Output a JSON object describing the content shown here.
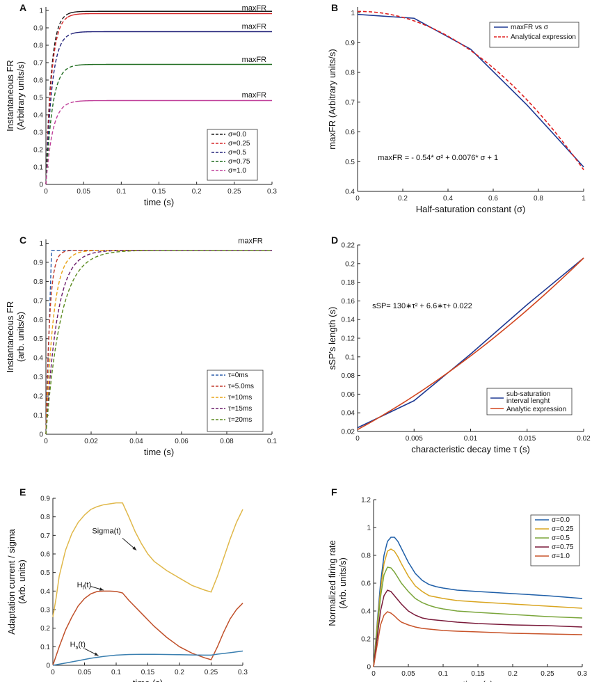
{
  "figure": {
    "panels": [
      "A",
      "B",
      "C",
      "D",
      "E",
      "F"
    ]
  },
  "chart_data": [
    {
      "panel": "A",
      "type": "line",
      "title": "",
      "xlabel": "time (s)",
      "ylabel": [
        "Instantaneous FR",
        "(Arbitrary units/s)"
      ],
      "xlim": [
        0,
        0.3
      ],
      "ylim": [
        0,
        1.02
      ],
      "xticks": [
        0,
        0.05,
        0.1,
        0.15,
        0.2,
        0.25,
        0.3
      ],
      "xtick_labels": [
        "0",
        "0.05",
        "0.1",
        "0.15",
        "0.2",
        "0.25",
        "0.3"
      ],
      "yticks": [
        0,
        0.1,
        0.2,
        0.3,
        0.4,
        0.5,
        0.6,
        0.7,
        0.8,
        0.9,
        1
      ],
      "ytick_labels": [
        "0",
        "0.1",
        "0.2",
        "0.3",
        "0.4",
        "0.5",
        "0.6",
        "0.7",
        "0.8",
        "0.9",
        "1"
      ],
      "legend_position": "bottom-right",
      "series": [
        {
          "name": "σ=0.0",
          "plateau": 0.995,
          "tau": 0.007,
          "color": "#1a1a1a",
          "dash_until": 0.03
        },
        {
          "name": "σ=0.25",
          "plateau": 0.982,
          "tau": 0.0075,
          "color": "#d62728",
          "dash_until": 0.03
        },
        {
          "name": "σ=0.5",
          "plateau": 0.878,
          "tau": 0.008,
          "color": "#23237a",
          "dash_until": 0.035
        },
        {
          "name": "σ=0.75",
          "plateau": 0.69,
          "tau": 0.0085,
          "color": "#1e6b1e",
          "dash_until": 0.04
        },
        {
          "name": "σ=1.0",
          "plateau": 0.482,
          "tau": 0.009,
          "color": "#c0409a",
          "dash_until": 0.04
        }
      ],
      "annotations": [
        {
          "text": "maxFR",
          "x": 0.26,
          "y": 1.0
        },
        {
          "text": "maxFR",
          "x": 0.26,
          "y": 0.895
        },
        {
          "text": "maxFR",
          "x": 0.26,
          "y": 0.705
        },
        {
          "text": "maxFR",
          "x": 0.26,
          "y": 0.5
        }
      ]
    },
    {
      "panel": "B",
      "type": "line",
      "title": "",
      "xlabel": "Half-saturation constant (σ)",
      "ylabel": [
        "maxFR (Arbitrary units/s)"
      ],
      "xlim": [
        0,
        1
      ],
      "ylim": [
        0.4,
        1.02
      ],
      "xticks": [
        0,
        0.2,
        0.4,
        0.6,
        0.8,
        1
      ],
      "xtick_labels": [
        "0",
        "0.2",
        "0.4",
        "0.6",
        "0.8",
        "1"
      ],
      "yticks": [
        0.4,
        0.5,
        0.6,
        0.7,
        0.8,
        0.9,
        1
      ],
      "ytick_labels": [
        "0.4",
        "0.5",
        "0.6",
        "0.7",
        "0.8",
        "0.9",
        "1"
      ],
      "legend_position": "top-right",
      "series": [
        {
          "name": "maxFR vs  σ",
          "x": [
            0,
            0.25,
            0.5,
            0.75,
            1.0
          ],
          "y": [
            0.995,
            0.982,
            0.878,
            0.69,
            0.482
          ],
          "color": "#1f3a93",
          "style": "solid"
        },
        {
          "name": "Analytical expression",
          "formula": "-0.54*s^2+0.0076*s+1",
          "color": "#e02020",
          "style": "dashed"
        }
      ],
      "equation": "maxFR = - 0.54*   σ² + 0.0076*   σ + 1"
    },
    {
      "panel": "C",
      "type": "line",
      "title": "",
      "xlabel": "time (s)",
      "ylabel": [
        "Instantaneous FR",
        "(arb. units/s)"
      ],
      "xlim": [
        0,
        0.1
      ],
      "ylim": [
        0,
        1.02
      ],
      "xticks": [
        0,
        0.02,
        0.04,
        0.06,
        0.08,
        0.1
      ],
      "xtick_labels": [
        "0",
        "0.02",
        "0.04",
        "0.06",
        "0.08",
        "0.1"
      ],
      "yticks": [
        0,
        0.1,
        0.2,
        0.3,
        0.4,
        0.5,
        0.6,
        0.7,
        0.8,
        0.9,
        1
      ],
      "ytick_labels": [
        "0",
        "0.1",
        "0.2",
        "0.3",
        "0.4",
        "0.5",
        "0.6",
        "0.7",
        "0.8",
        "0.9",
        "1"
      ],
      "legend_position": "bottom-right",
      "plateau": 0.963,
      "series": [
        {
          "name": "τ=0ms",
          "tau_ms": 0,
          "color": "#2a5caa"
        },
        {
          "name": "τ=5.0ms",
          "tau_ms": 5,
          "color": "#c0392b"
        },
        {
          "name": "τ=10ms",
          "tau_ms": 10,
          "color": "#e8a317"
        },
        {
          "name": "τ=15ms",
          "tau_ms": 15,
          "color": "#6a1b6a"
        },
        {
          "name": "τ=20ms",
          "tau_ms": 20,
          "color": "#5a8a1e"
        }
      ],
      "annotations": [
        {
          "text": "maxFR",
          "x": 0.085,
          "y": 0.985
        }
      ]
    },
    {
      "panel": "D",
      "type": "line",
      "title": "",
      "xlabel": "characteristic decay time τ (s)",
      "ylabel": [
        "sSP's length (s)"
      ],
      "xlim": [
        0,
        0.02
      ],
      "ylim": [
        0.02,
        0.22
      ],
      "xticks": [
        0,
        0.005,
        0.01,
        0.015,
        0.02
      ],
      "xtick_labels": [
        "0",
        "0.005",
        "0.01",
        "0.015",
        "0.02"
      ],
      "yticks": [
        0.02,
        0.04,
        0.06,
        0.08,
        0.1,
        0.12,
        0.14,
        0.16,
        0.18,
        0.2,
        0.22
      ],
      "ytick_labels": [
        "0.02",
        "0.04",
        "0.06",
        "0.08",
        "0.1",
        "0.12",
        "0.14",
        "0.16",
        "0.18",
        "0.2",
        "0.22"
      ],
      "legend_position": "bottom-right",
      "series": [
        {
          "name": "sub-saturation interval lenght",
          "legend_lines": [
            "sub-saturation",
            "interval lenght"
          ],
          "x": [
            0,
            0.005,
            0.01,
            0.015,
            0.02
          ],
          "y": [
            0.024,
            0.053,
            0.103,
            0.156,
            0.206
          ],
          "color": "#1f3a93"
        },
        {
          "name": "Analytic expression",
          "formula": "130*t^2+6.6*t+0.022",
          "color": "#d2451e"
        }
      ],
      "equation": "sSP= 130∗τ² + 6.6∗τ+ 0.022"
    },
    {
      "panel": "E",
      "type": "line",
      "title": "",
      "xlabel": "time (s)",
      "ylabel": [
        "Adaptation current / sigma",
        "(Arb. units)"
      ],
      "xlim": [
        0,
        0.3
      ],
      "ylim": [
        0,
        0.9
      ],
      "xticks": [
        0,
        0.05,
        0.1,
        0.15,
        0.2,
        0.25,
        0.3
      ],
      "xtick_labels": [
        "0",
        "0.05",
        "0.1",
        "0.15",
        "0.2",
        "0.25",
        "0.3"
      ],
      "yticks": [
        0,
        0.1,
        0.2,
        0.3,
        0.4,
        0.5,
        0.6,
        0.7,
        0.8,
        0.9
      ],
      "ytick_labels": [
        "0",
        "0.1",
        "0.2",
        "0.3",
        "0.4",
        "0.5",
        "0.6",
        "0.7",
        "0.8",
        "0.9"
      ],
      "series": [
        {
          "name": "Sigma(t)",
          "color": "#e0b84a",
          "x": [
            0,
            0.005,
            0.01,
            0.02,
            0.03,
            0.04,
            0.05,
            0.06,
            0.07,
            0.08,
            0.09,
            0.1,
            0.11,
            0.12,
            0.13,
            0.14,
            0.15,
            0.16,
            0.18,
            0.2,
            0.22,
            0.24,
            0.25,
            0.26,
            0.27,
            0.28,
            0.29,
            0.3
          ],
          "y": [
            0.26,
            0.36,
            0.48,
            0.62,
            0.71,
            0.77,
            0.81,
            0.84,
            0.855,
            0.865,
            0.87,
            0.875,
            0.875,
            0.8,
            0.72,
            0.655,
            0.6,
            0.56,
            0.51,
            0.47,
            0.43,
            0.405,
            0.395,
            0.48,
            0.58,
            0.68,
            0.77,
            0.84
          ]
        },
        {
          "name": "H_f(t)",
          "color": "#c0502a",
          "x": [
            0,
            0.01,
            0.02,
            0.03,
            0.04,
            0.05,
            0.06,
            0.07,
            0.08,
            0.09,
            0.1,
            0.11,
            0.12,
            0.14,
            0.16,
            0.18,
            0.2,
            0.22,
            0.24,
            0.25,
            0.26,
            0.27,
            0.28,
            0.29,
            0.3
          ],
          "y": [
            0.0,
            0.1,
            0.19,
            0.26,
            0.32,
            0.36,
            0.385,
            0.398,
            0.4,
            0.4,
            0.398,
            0.39,
            0.35,
            0.28,
            0.21,
            0.15,
            0.1,
            0.065,
            0.04,
            0.03,
            0.1,
            0.18,
            0.25,
            0.3,
            0.335
          ]
        },
        {
          "name": "H_s(t)",
          "color": "#3a7fb0",
          "x": [
            0,
            0.02,
            0.04,
            0.06,
            0.08,
            0.1,
            0.12,
            0.14,
            0.16,
            0.18,
            0.2,
            0.22,
            0.24,
            0.25,
            0.26,
            0.28,
            0.3
          ],
          "y": [
            0.0,
            0.012,
            0.025,
            0.038,
            0.048,
            0.055,
            0.058,
            0.059,
            0.059,
            0.058,
            0.057,
            0.056,
            0.055,
            0.055,
            0.06,
            0.068,
            0.077
          ]
        }
      ],
      "annotations": [
        {
          "text": "Sigma(t)",
          "x": 0.062,
          "y": 0.71
        },
        {
          "text": "H",
          "sub": "f",
          "suffix": "(t)",
          "x": 0.038,
          "y": 0.42
        },
        {
          "text": "H",
          "sub": "s",
          "suffix": "(t)",
          "x": 0.027,
          "y": 0.1
        }
      ]
    },
    {
      "panel": "F",
      "type": "line",
      "title": "",
      "xlabel": "time (s)",
      "ylabel": [
        "Normalized firing rate",
        "(Arb. units/s)"
      ],
      "xlim": [
        0,
        0.3
      ],
      "ylim": [
        0,
        1.2
      ],
      "xticks": [
        0,
        0.05,
        0.1,
        0.15,
        0.2,
        0.25,
        0.3
      ],
      "xtick_labels": [
        "0",
        "0.05",
        "0.1",
        "0.15",
        "0.2",
        "0.25",
        "0.3"
      ],
      "yticks": [
        0,
        0.2,
        0.4,
        0.6,
        0.8,
        1,
        1.2
      ],
      "ytick_labels": [
        "0",
        "0.2",
        "0.4",
        "0.6",
        "0.8",
        "1",
        "1.2"
      ],
      "legend_position": "top-right",
      "series": [
        {
          "name": "σ=0.0",
          "x": [
            0,
            0.005,
            0.01,
            0.015,
            0.02,
            0.025,
            0.03,
            0.035,
            0.04,
            0.05,
            0.06,
            0.07,
            0.08,
            0.09,
            0.1,
            0.12,
            0.15,
            0.2,
            0.25,
            0.3
          ],
          "y": [
            0,
            0.3,
            0.6,
            0.8,
            0.9,
            0.93,
            0.93,
            0.9,
            0.85,
            0.75,
            0.67,
            0.62,
            0.59,
            0.575,
            0.565,
            0.55,
            0.54,
            0.525,
            0.51,
            0.49
          ],
          "color": "#1f5fa8"
        },
        {
          "name": "σ=0.25",
          "x": [
            0,
            0.005,
            0.01,
            0.015,
            0.02,
            0.025,
            0.03,
            0.035,
            0.04,
            0.05,
            0.06,
            0.07,
            0.08,
            0.09,
            0.1,
            0.12,
            0.15,
            0.2,
            0.25,
            0.3
          ],
          "y": [
            0,
            0.28,
            0.55,
            0.74,
            0.83,
            0.845,
            0.83,
            0.79,
            0.74,
            0.65,
            0.58,
            0.54,
            0.51,
            0.5,
            0.49,
            0.475,
            0.465,
            0.45,
            0.435,
            0.42
          ],
          "color": "#d9a520"
        },
        {
          "name": "σ=0.5",
          "x": [
            0,
            0.005,
            0.01,
            0.015,
            0.02,
            0.025,
            0.03,
            0.035,
            0.04,
            0.05,
            0.06,
            0.07,
            0.08,
            0.09,
            0.1,
            0.12,
            0.15,
            0.2,
            0.25,
            0.3
          ],
          "y": [
            0,
            0.25,
            0.5,
            0.66,
            0.715,
            0.71,
            0.68,
            0.64,
            0.6,
            0.54,
            0.49,
            0.46,
            0.44,
            0.425,
            0.415,
            0.4,
            0.39,
            0.375,
            0.36,
            0.35
          ],
          "color": "#7aa53a"
        },
        {
          "name": "σ=0.75",
          "x": [
            0,
            0.005,
            0.01,
            0.015,
            0.02,
            0.025,
            0.03,
            0.035,
            0.04,
            0.05,
            0.06,
            0.07,
            0.08,
            0.09,
            0.1,
            0.12,
            0.15,
            0.2,
            0.25,
            0.3
          ],
          "y": [
            0,
            0.2,
            0.4,
            0.51,
            0.55,
            0.54,
            0.51,
            0.48,
            0.45,
            0.4,
            0.37,
            0.35,
            0.34,
            0.335,
            0.33,
            0.32,
            0.31,
            0.3,
            0.295,
            0.285
          ],
          "color": "#7a1a3a"
        },
        {
          "name": "σ=1.0",
          "x": [
            0,
            0.005,
            0.01,
            0.015,
            0.02,
            0.025,
            0.03,
            0.035,
            0.04,
            0.05,
            0.06,
            0.07,
            0.08,
            0.09,
            0.1,
            0.12,
            0.15,
            0.2,
            0.25,
            0.3
          ],
          "y": [
            0,
            0.15,
            0.3,
            0.37,
            0.395,
            0.385,
            0.365,
            0.34,
            0.32,
            0.3,
            0.285,
            0.275,
            0.27,
            0.265,
            0.26,
            0.255,
            0.25,
            0.24,
            0.235,
            0.23
          ],
          "color": "#c8542a"
        }
      ]
    }
  ]
}
